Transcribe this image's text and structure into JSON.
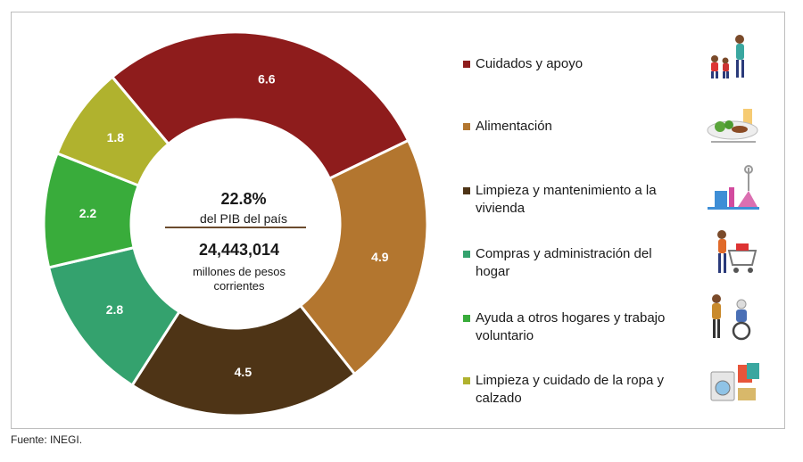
{
  "chart_data": {
    "type": "pie",
    "variant": "donut",
    "categories": [
      "Cuidados y apoyo",
      "Alimentación",
      "Limpieza y mantenimiento a la vivienda",
      "Compras y administración del hogar",
      "Ayuda a otros hogares y trabajo voluntario",
      "Limpieza y cuidado de la ropa y calzado"
    ],
    "values": [
      6.6,
      4.9,
      4.5,
      2.8,
      2.2,
      1.8
    ],
    "value_labels": [
      "6.6",
      "4.9",
      "4.5",
      "2.8",
      "2.2",
      "1.8"
    ],
    "colors": [
      "#8e1c1c",
      "#b3762f",
      "#4e3416",
      "#34a26e",
      "#39ac3b",
      "#b0b22e"
    ],
    "start_angle_deg": -40,
    "legend_position": "right",
    "center": {
      "percent": "22.8%",
      "percent_label": "del PIB del país",
      "total": "24,443,014",
      "total_label_line1": "millones de pesos",
      "total_label_line2": "corrientes"
    }
  },
  "legend": [
    {
      "label_lines": [
        "Cuidados y apoyo"
      ],
      "icon": "family-children-icon"
    },
    {
      "label_lines": [
        "Alimentación"
      ],
      "icon": "food-plate-icon"
    },
    {
      "label_lines": [
        "Limpieza y mantenimiento a la",
        "vivienda"
      ],
      "icon": "cleaning-supplies-icon"
    },
    {
      "label_lines": [
        "Compras y administración del",
        "hogar"
      ],
      "icon": "shopping-cart-icon"
    },
    {
      "label_lines": [
        "Ayuda a otros hogares y trabajo",
        "voluntario"
      ],
      "icon": "wheelchair-helper-icon"
    },
    {
      "label_lines": [
        "Limpieza y cuidado de la ropa y",
        "calzado"
      ],
      "icon": "laundry-icon"
    }
  ],
  "source": "Fuente: INEGI."
}
